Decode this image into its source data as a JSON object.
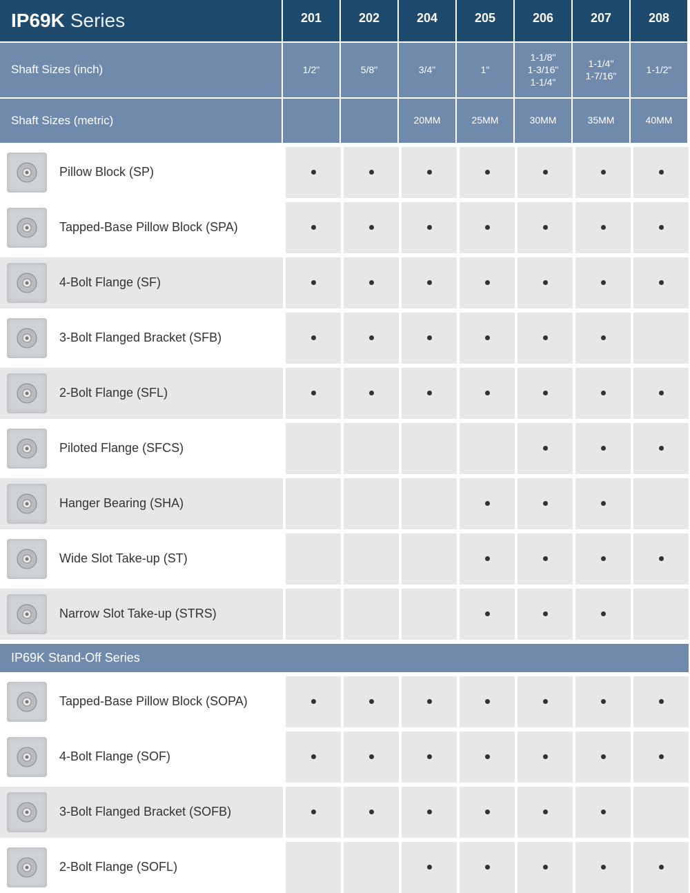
{
  "header": {
    "title_bold": "IP69K",
    "title_light": "Series",
    "columns": [
      "201",
      "202",
      "204",
      "205",
      "206",
      "207",
      "208"
    ]
  },
  "subheaders": [
    {
      "label": "Shaft Sizes (inch)",
      "cells": [
        [
          "1/2\""
        ],
        [
          "5/8\""
        ],
        [
          "3/4\""
        ],
        [
          "1\""
        ],
        [
          "1-1/8\"",
          "1-3/16\"",
          "1-1/4\""
        ],
        [
          "1-1/4\"",
          "1-7/16\""
        ],
        [
          "1-1/2\""
        ]
      ]
    },
    {
      "label": "Shaft Sizes (metric)",
      "cells": [
        [],
        [],
        [
          "20MM"
        ],
        [
          "25MM"
        ],
        [
          "30MM"
        ],
        [
          "35MM"
        ],
        [
          "40MM"
        ]
      ]
    }
  ],
  "sections": [
    {
      "title": null,
      "rows": [
        {
          "label": "Pillow Block (SP)",
          "alt": false,
          "dots": [
            true,
            true,
            true,
            true,
            true,
            true,
            true
          ]
        },
        {
          "label": "Tapped-Base Pillow Block (SPA)",
          "alt": false,
          "dots": [
            true,
            true,
            true,
            true,
            true,
            true,
            true
          ]
        },
        {
          "label": "4-Bolt Flange (SF)",
          "alt": true,
          "dots": [
            true,
            true,
            true,
            true,
            true,
            true,
            true
          ]
        },
        {
          "label": "3-Bolt Flanged Bracket (SFB)",
          "alt": false,
          "dots": [
            true,
            true,
            true,
            true,
            true,
            true,
            false
          ]
        },
        {
          "label": "2-Bolt Flange (SFL)",
          "alt": true,
          "dots": [
            true,
            true,
            true,
            true,
            true,
            true,
            true
          ]
        },
        {
          "label": "Piloted Flange (SFCS)",
          "alt": false,
          "dots": [
            false,
            false,
            false,
            false,
            true,
            true,
            true
          ]
        },
        {
          "label": "Hanger Bearing (SHA)",
          "alt": true,
          "dots": [
            false,
            false,
            false,
            true,
            true,
            true,
            false
          ]
        },
        {
          "label": "Wide Slot Take-up (ST)",
          "alt": false,
          "dots": [
            false,
            false,
            false,
            true,
            true,
            true,
            true
          ]
        },
        {
          "label": "Narrow Slot Take-up (STRS)",
          "alt": true,
          "dots": [
            false,
            false,
            false,
            true,
            true,
            true,
            false
          ]
        }
      ]
    },
    {
      "title": "IP69K Stand-Off Series",
      "rows": [
        {
          "label": "Tapped-Base Pillow Block  (SOPA)",
          "alt": false,
          "dots": [
            true,
            true,
            true,
            true,
            true,
            true,
            true
          ]
        },
        {
          "label": "4-Bolt Flange (SOF)",
          "alt": false,
          "dots": [
            true,
            true,
            true,
            true,
            true,
            true,
            true
          ]
        },
        {
          "label": "3-Bolt Flanged Bracket (SOFB)",
          "alt": true,
          "dots": [
            true,
            true,
            true,
            true,
            true,
            true,
            false
          ]
        },
        {
          "label": "2-Bolt Flange (SOFL)",
          "alt": false,
          "dots": [
            false,
            false,
            true,
            true,
            true,
            true,
            true
          ]
        }
      ]
    }
  ],
  "colors": {
    "header_bg": "#1e4a6d",
    "subheader_bg": "#6f8aab",
    "cell_alt_bg": "#e5e7e9",
    "dot_color": "#333333"
  }
}
